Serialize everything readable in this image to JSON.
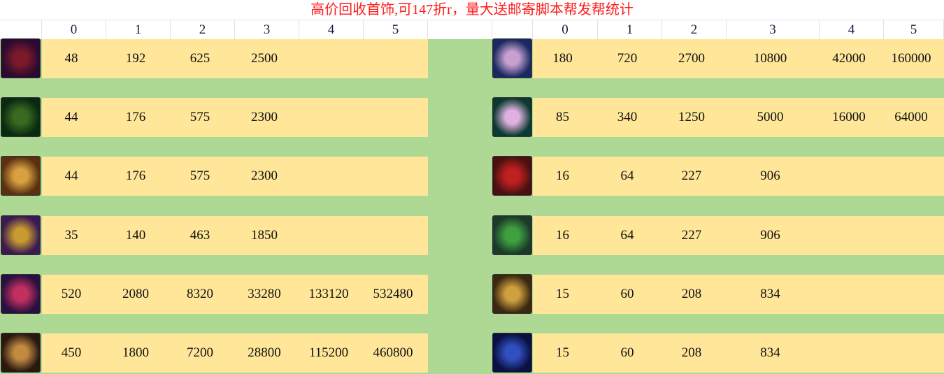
{
  "title": "高价回收首饰,可147折r，量大送邮寄脚本帮发帮统计",
  "headers": {
    "left": [
      "0",
      "1",
      "2",
      "3",
      "4",
      "5"
    ],
    "right": [
      "0",
      "1",
      "2",
      "3",
      "4",
      "5"
    ]
  },
  "left_rows": [
    {
      "icon": "skull-necklace-icon",
      "values": [
        "48",
        "192",
        "625",
        "2500",
        "",
        ""
      ]
    },
    {
      "icon": "green-vine-necklace-icon",
      "values": [
        "44",
        "176",
        "575",
        "2300",
        "",
        ""
      ]
    },
    {
      "icon": "winged-pendant-icon",
      "values": [
        "44",
        "176",
        "575",
        "2300",
        "",
        ""
      ]
    },
    {
      "icon": "gold-chain-bracelet-icon",
      "values": [
        "35",
        "140",
        "463",
        "1850",
        "",
        ""
      ]
    },
    {
      "icon": "heart-gem-necklace-icon",
      "values": [
        "520",
        "2080",
        "8320",
        "33280",
        "133120",
        "532480"
      ]
    },
    {
      "icon": "gold-pendant-icon",
      "values": [
        "450",
        "1800",
        "7200",
        "28800",
        "115200",
        "460800"
      ]
    }
  ],
  "right_rows": [
    {
      "icon": "ruby-silver-ring-icon",
      "values": [
        "180",
        "720",
        "2700",
        "10800",
        "42000",
        "160000"
      ]
    },
    {
      "icon": "pink-gem-silver-ring-icon",
      "values": [
        "85",
        "340",
        "1250",
        "5000",
        "16000",
        "64000"
      ]
    },
    {
      "icon": "red-gold-ring-icon",
      "values": [
        "16",
        "64",
        "227",
        "906",
        "",
        ""
      ]
    },
    {
      "icon": "jade-flower-ring-icon",
      "values": [
        "16",
        "64",
        "227",
        "906",
        "",
        ""
      ]
    },
    {
      "icon": "rose-ring-icon",
      "values": [
        "15",
        "60",
        "208",
        "834",
        "",
        ""
      ]
    },
    {
      "icon": "blue-sapphire-ring-icon",
      "values": [
        "15",
        "60",
        "208",
        "834",
        "",
        ""
      ]
    }
  ],
  "colors": {
    "row": "#ffe699",
    "background": "#aed995",
    "title": "#ff1a1a"
  }
}
